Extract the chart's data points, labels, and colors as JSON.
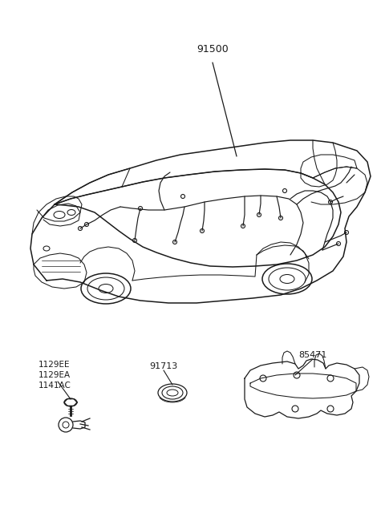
{
  "bg_color": "#ffffff",
  "lc": "#1a1a1a",
  "tc": "#1a1a1a",
  "figsize": [
    4.8,
    6.55
  ],
  "dpi": 100,
  "label_91500": "91500",
  "label_1129EE": "1129EE",
  "label_1129EA": "1129EA",
  "label_1141AC": "1141AC",
  "label_91713": "91713",
  "label_85471": "85471",
  "car_lw": 1.1,
  "wire_lw": 0.85,
  "detail_lw": 0.75
}
